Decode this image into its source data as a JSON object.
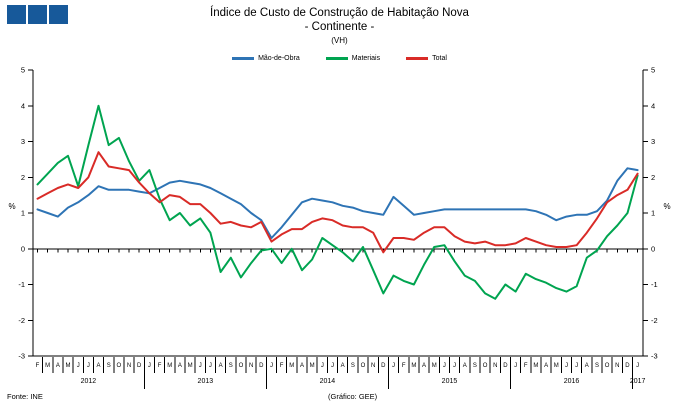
{
  "logo": {
    "color": "#17599A",
    "square_count": 3
  },
  "title": {
    "line1": "Índice de Custo de Construção de Habitação Nova",
    "line2": "- Continente -",
    "line3": "(VH)"
  },
  "footer": {
    "source": "Fonte: INE",
    "credit": "(Gráfico: GEE)"
  },
  "chart_data": {
    "type": "line",
    "title": "Índice de Custo de Construção de Habitação Nova - Continente - (VH)",
    "ylabel_left": "%",
    "ylabel_right": "%",
    "ylim": [
      -3,
      5
    ],
    "yticks": [
      5,
      4,
      3,
      2,
      1,
      0,
      -1,
      -2,
      -3
    ],
    "grid": false,
    "legend_position": "top",
    "x_start": "Feb 2012",
    "x_end": "Jan 2017",
    "month_letters": [
      "F",
      "M",
      "A",
      "M",
      "J",
      "J",
      "A",
      "S",
      "O",
      "N",
      "D",
      "J",
      "F",
      "M",
      "A",
      "M",
      "J",
      "J",
      "A",
      "S",
      "O",
      "N",
      "D",
      "J",
      "F",
      "M",
      "A",
      "M",
      "J",
      "J",
      "A",
      "S",
      "O",
      "N",
      "D",
      "J",
      "F",
      "M",
      "A",
      "M",
      "J",
      "J",
      "A",
      "S",
      "O",
      "N",
      "D",
      "J",
      "F",
      "M",
      "A",
      "M",
      "J",
      "J",
      "A",
      "S",
      "O",
      "N",
      "D",
      "J"
    ],
    "years": [
      {
        "label": "2012",
        "start": 0,
        "end": 10
      },
      {
        "label": "2013",
        "start": 11,
        "end": 22
      },
      {
        "label": "2014",
        "start": 23,
        "end": 34
      },
      {
        "label": "2015",
        "start": 35,
        "end": 46
      },
      {
        "label": "2016",
        "start": 47,
        "end": 58
      },
      {
        "label": "2017",
        "start": 59,
        "end": 59
      }
    ],
    "series": [
      {
        "name": "Mão-de-Obra",
        "color": "#2E74B5",
        "values": [
          1.1,
          1.0,
          0.9,
          1.15,
          1.3,
          1.5,
          1.75,
          1.65,
          1.65,
          1.65,
          1.6,
          1.55,
          1.7,
          1.85,
          1.9,
          1.85,
          1.8,
          1.7,
          1.55,
          1.4,
          1.25,
          1.0,
          0.8,
          0.3,
          0.6,
          0.95,
          1.3,
          1.4,
          1.35,
          1.3,
          1.2,
          1.15,
          1.05,
          1.0,
          0.95,
          1.45,
          1.2,
          0.95,
          1.0,
          1.05,
          1.1,
          1.1,
          1.1,
          1.1,
          1.1,
          1.1,
          1.1,
          1.1,
          1.1,
          1.05,
          0.95,
          0.8,
          0.9,
          0.95,
          0.95,
          1.05,
          1.35,
          1.9,
          2.25,
          2.2
        ]
      },
      {
        "name": "Materiais",
        "color": "#00A450",
        "values": [
          1.8,
          2.1,
          2.4,
          2.6,
          1.75,
          2.9,
          4.0,
          2.9,
          3.1,
          2.45,
          1.9,
          2.2,
          1.4,
          0.8,
          1.0,
          0.65,
          0.85,
          0.45,
          -0.65,
          -0.25,
          -0.8,
          -0.4,
          -0.05,
          0.0,
          -0.4,
          0.0,
          -0.6,
          -0.3,
          0.3,
          0.1,
          -0.1,
          -0.35,
          0.05,
          -0.6,
          -1.25,
          -0.75,
          -0.9,
          -1.0,
          -0.45,
          0.05,
          0.1,
          -0.35,
          -0.75,
          -0.9,
          -1.25,
          -1.4,
          -1.0,
          -1.2,
          -0.7,
          -0.85,
          -0.95,
          -1.1,
          -1.2,
          -1.05,
          -0.25,
          -0.05,
          0.35,
          0.65,
          1.0,
          2.05
        ]
      },
      {
        "name": "Total",
        "color": "#D92B27",
        "values": [
          1.4,
          1.55,
          1.7,
          1.8,
          1.7,
          2.0,
          2.7,
          2.3,
          2.25,
          2.2,
          1.85,
          1.55,
          1.3,
          1.5,
          1.45,
          1.25,
          1.25,
          1.0,
          0.7,
          0.75,
          0.65,
          0.6,
          0.75,
          0.2,
          0.4,
          0.55,
          0.55,
          0.75,
          0.85,
          0.8,
          0.65,
          0.6,
          0.6,
          0.45,
          -0.1,
          0.3,
          0.3,
          0.25,
          0.45,
          0.6,
          0.6,
          0.35,
          0.2,
          0.15,
          0.2,
          0.1,
          0.1,
          0.15,
          0.3,
          0.2,
          0.1,
          0.05,
          0.05,
          0.1,
          0.45,
          0.85,
          1.3,
          1.5,
          1.65,
          2.1
        ]
      }
    ]
  }
}
